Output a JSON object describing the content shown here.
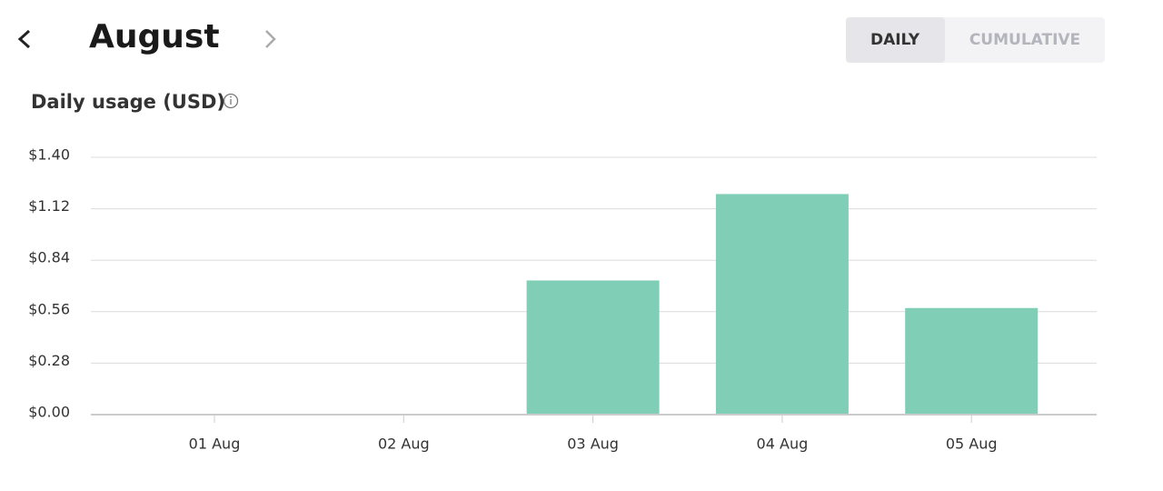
{
  "header": {
    "month": "August",
    "toggle": [
      "DAILY",
      "CUMULATIVE"
    ]
  },
  "chart_data": {
    "type": "bar",
    "title": "Daily usage (USD)",
    "categories": [
      "01 Aug",
      "02 Aug",
      "03 Aug",
      "04 Aug",
      "05 Aug"
    ],
    "values": [
      0,
      0,
      0.73,
      1.2,
      0.58
    ],
    "color": "#80ceb6",
    "ylim": [
      0,
      1.4
    ],
    "yticks": [
      {
        "value": 0,
        "label": "$0.00"
      },
      {
        "value": 0.28,
        "label": "$0.28"
      },
      {
        "value": 0.56,
        "label": "$0.56"
      },
      {
        "value": 0.84,
        "label": "$0.84"
      },
      {
        "value": 1.12,
        "label": "$1.12"
      },
      {
        "value": 1.4,
        "label": "$1.40"
      }
    ],
    "grid": true
  }
}
